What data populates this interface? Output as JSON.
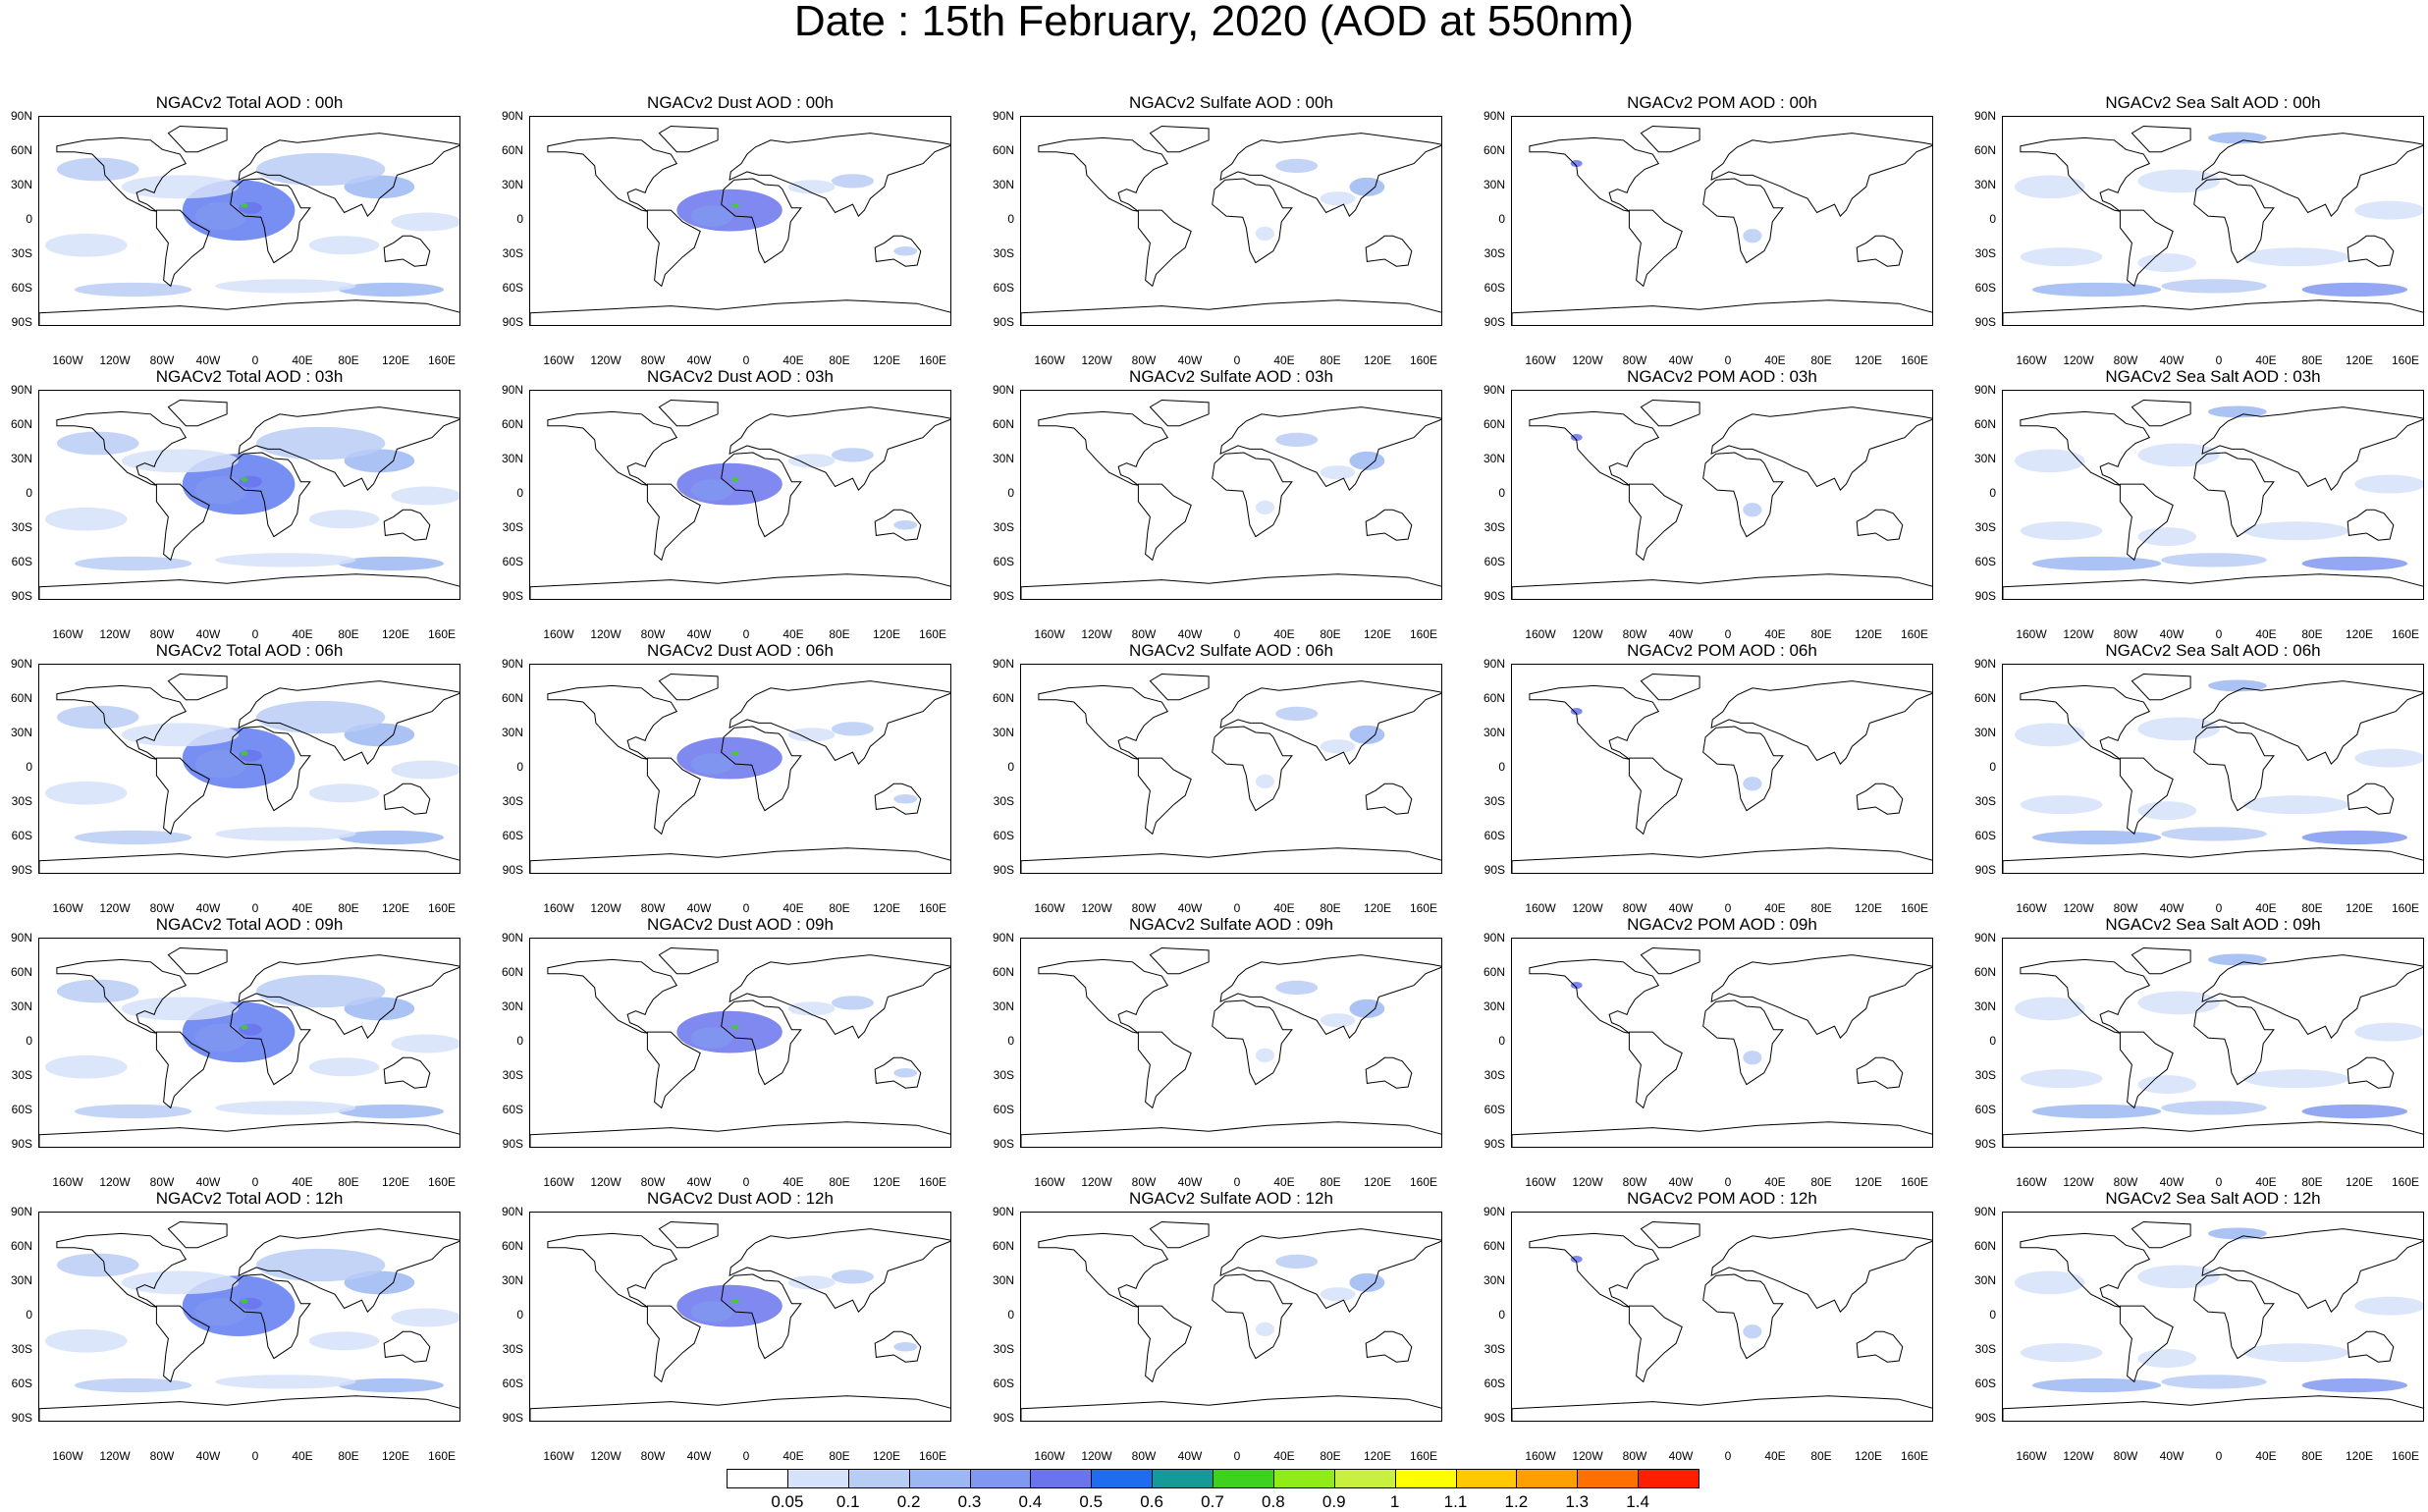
{
  "title": "Date : 15th February, 2020 (AOD at 550nm)",
  "lat_labels": [
    "90N",
    "60N",
    "30N",
    "0",
    "30S",
    "60S",
    "90S"
  ],
  "lon_labels": [
    "160W",
    "120W",
    "80W",
    "40W",
    "0",
    "40E",
    "80E",
    "120E",
    "160E"
  ],
  "panels": [
    {
      "title": "NGACv2 Total AOD : 00h",
      "type": "total",
      "time": "00h"
    },
    {
      "title": "NGACv2 Dust AOD : 00h",
      "type": "dust",
      "time": "00h"
    },
    {
      "title": "NGACv2 Sulfate AOD : 00h",
      "type": "sulfate",
      "time": "00h"
    },
    {
      "title": "NGACv2 POM AOD : 00h",
      "type": "pom",
      "time": "00h"
    },
    {
      "title": "NGACv2 Sea Salt AOD : 00h",
      "type": "seasalt",
      "time": "00h"
    },
    {
      "title": "NGACv2 Total AOD : 03h",
      "type": "total",
      "time": "03h"
    },
    {
      "title": "NGACv2 Dust AOD : 03h",
      "type": "dust",
      "time": "03h"
    },
    {
      "title": "NGACv2 Sulfate AOD : 03h",
      "type": "sulfate",
      "time": "03h"
    },
    {
      "title": "NGACv2 POM AOD : 03h",
      "type": "pom",
      "time": "03h"
    },
    {
      "title": "NGACv2 Sea Salt AOD : 03h",
      "type": "seasalt",
      "time": "03h"
    },
    {
      "title": "NGACv2 Total AOD : 06h",
      "type": "total",
      "time": "06h"
    },
    {
      "title": "NGACv2 Dust AOD : 06h",
      "type": "dust",
      "time": "06h"
    },
    {
      "title": "NGACv2 Sulfate AOD : 06h",
      "type": "sulfate",
      "time": "06h"
    },
    {
      "title": "NGACv2 POM AOD : 06h",
      "type": "pom",
      "time": "06h"
    },
    {
      "title": "NGACv2 Sea Salt AOD : 06h",
      "type": "seasalt",
      "time": "06h"
    },
    {
      "title": "NGACv2 Total AOD : 09h",
      "type": "total",
      "time": "09h"
    },
    {
      "title": "NGACv2 Dust AOD : 09h",
      "type": "dust",
      "time": "09h"
    },
    {
      "title": "NGACv2 Sulfate AOD : 09h",
      "type": "sulfate",
      "time": "09h"
    },
    {
      "title": "NGACv2 POM AOD : 09h",
      "type": "pom",
      "time": "09h"
    },
    {
      "title": "NGACv2 Sea Salt  AOD : 09h",
      "type": "seasalt",
      "time": "09h"
    },
    {
      "title": "NGACv2 Total AOD :  12h",
      "type": "total",
      "time": "12h"
    },
    {
      "title": "NGACv2 Dust AOD : 12h",
      "type": "dust",
      "time": "12h"
    },
    {
      "title": "NGACv2 Sulfate AOD : 12h",
      "type": "sulfate",
      "time": "12h"
    },
    {
      "title": "NGACv2 POM  AOD : 12h",
      "type": "pom",
      "time": "12h"
    },
    {
      "title": "NGACv2 Sea Salt AOD : 12h",
      "type": "seasalt",
      "time": "12h"
    }
  ],
  "colorbar": {
    "labels": [
      "0.05",
      "0.1",
      "0.2",
      "0.3",
      "0.4",
      "0.5",
      "0.6",
      "0.7",
      "0.8",
      "0.9",
      "1",
      "1.1",
      "1.2",
      "1.3",
      "1.4"
    ],
    "colors": [
      "#ffffff",
      "#d6e2fa",
      "#b8cdf6",
      "#9cb7f2",
      "#8098f0",
      "#6a74ec",
      "#1f6cf0",
      "#159a9a",
      "#3ed21f",
      "#90ec17",
      "#c9f03e",
      "#ffff00",
      "#ffc800",
      "#ff9f00",
      "#ff7000",
      "#ff1e00"
    ]
  }
}
